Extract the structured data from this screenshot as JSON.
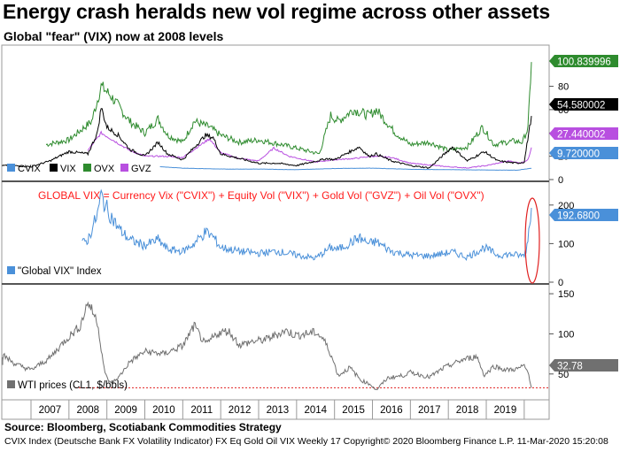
{
  "title": "Energy crash heralds new vol regime across other assets",
  "subtitle": "Global \"fear\" (VIX) now at 2008 levels",
  "source": "Source: Bloomberg, Scotiabank Commodities Strategy",
  "footer": "CVIX Index (Deutsche Bank FX Volatility Indicator) FX Eq Gold Oil VIX  Weekly 17 Copyright© 2020 Bloomberg Finance L.P. 11-Mar-2020 15:20:08",
  "chart_data": [
    {
      "type": "line",
      "panel": "top",
      "ylim": [
        0,
        110
      ],
      "yticks": [
        0,
        20,
        40,
        60,
        80
      ],
      "x_label_years": [
        "2007",
        "2008",
        "2009",
        "2010",
        "2011",
        "2012",
        "2013",
        "2014",
        "2015",
        "2016",
        "2017",
        "2018",
        "2019"
      ],
      "series": [
        {
          "name": "CVIX",
          "color": "#4a90d9",
          "last_value": "9.720000",
          "x": [
            2010.4,
            2011,
            2012,
            2013,
            2014,
            2015,
            2016,
            2017,
            2018,
            2019,
            2019.8,
            2020.19
          ],
          "y": [
            11,
            9.8,
            9,
            9,
            8.5,
            9.5,
            9.8,
            8.8,
            8.5,
            8.2,
            8.0,
            9.72
          ]
        },
        {
          "name": "VIX",
          "color": "#000000",
          "last_value": "54.580002",
          "x": [
            2006.0,
            2006.5,
            2007.0,
            2007.5,
            2008.0,
            2008.5,
            2008.75,
            2008.85,
            2009.0,
            2009.3,
            2009.6,
            2010.0,
            2010.35,
            2010.6,
            2011.0,
            2011.6,
            2011.8,
            2012.0,
            2012.5,
            2013.0,
            2013.5,
            2014.0,
            2014.8,
            2015.0,
            2015.65,
            2015.9,
            2016.1,
            2016.5,
            2017.0,
            2017.5,
            2018.1,
            2018.5,
            2018.95,
            2019.3,
            2019.8,
            2020.0,
            2020.19
          ],
          "y": [
            12,
            12,
            11,
            16,
            24,
            22,
            40,
            62,
            45,
            38,
            26,
            20,
            32,
            22,
            17,
            38,
            36,
            22,
            18,
            14,
            14,
            12,
            18,
            17,
            28,
            20,
            22,
            16,
            12,
            10,
            28,
            16,
            24,
            16,
            14,
            15,
            54.58
          ]
        },
        {
          "name": "OVX",
          "color": "#2e8b2e",
          "last_value": "100.839996",
          "x": [
            2007.4,
            2008.0,
            2008.6,
            2008.85,
            2009.1,
            2009.6,
            2010.0,
            2010.35,
            2010.6,
            2011.0,
            2011.3,
            2011.7,
            2012.0,
            2012.5,
            2013.0,
            2013.6,
            2014.0,
            2014.6,
            2014.9,
            2015.1,
            2015.5,
            2015.9,
            2016.1,
            2016.6,
            2017.0,
            2017.5,
            2018.0,
            2018.5,
            2018.9,
            2019.2,
            2019.7,
            2019.95,
            2020.1,
            2020.19
          ],
          "y": [
            30,
            34,
            50,
            80,
            72,
            50,
            40,
            52,
            38,
            32,
            50,
            45,
            38,
            32,
            34,
            30,
            27,
            22,
            55,
            50,
            60,
            55,
            60,
            40,
            30,
            32,
            25,
            28,
            45,
            30,
            33,
            32,
            44,
            100.84
          ]
        },
        {
          "name": "GVZ",
          "color": "#b84fe0",
          "last_value": "27.440002",
          "x": [
            2008.5,
            2008.85,
            2009.1,
            2009.6,
            2010.0,
            2010.5,
            2011.0,
            2011.7,
            2012.0,
            2012.5,
            2013.0,
            2013.4,
            2013.8,
            2014.5,
            2015.0,
            2015.5,
            2016.0,
            2016.5,
            2017.0,
            2018.0,
            2018.5,
            2019.0,
            2019.6,
            2019.9,
            2020.1,
            2020.19
          ],
          "y": [
            25,
            40,
            35,
            25,
            20,
            20,
            19,
            35,
            23,
            18,
            16,
            27,
            20,
            15,
            17,
            18,
            20,
            19,
            14,
            11,
            10,
            12,
            16,
            14,
            17,
            27.44
          ]
        }
      ]
    },
    {
      "type": "line",
      "panel": "middle",
      "annotation": "GLOBAL VIX = Currency Vix (\"CVIX\") + Equity Vol (\"VIX\") + Gold Vol (\"GVZ\") + Oil Vol (\"OVX\")",
      "ylim": [
        0,
        250
      ],
      "yticks": [
        0,
        100,
        200
      ],
      "series": [
        {
          "name": "\"Global VIX\" Index",
          "color": "#4a90d9",
          "last_value": "192.6800",
          "x": [
            2008.35,
            2008.5,
            2008.75,
            2008.85,
            2009.0,
            2009.3,
            2009.6,
            2010.0,
            2010.35,
            2010.6,
            2011.0,
            2011.3,
            2011.6,
            2011.8,
            2012.0,
            2012.5,
            2013.0,
            2013.5,
            2014.0,
            2014.5,
            2014.9,
            2015.1,
            2015.65,
            2015.9,
            2016.1,
            2016.5,
            2017.0,
            2017.5,
            2018.1,
            2018.5,
            2018.95,
            2019.3,
            2019.7,
            2019.95,
            2020.05,
            2020.19
          ],
          "y": [
            100,
            110,
            175,
            225,
            190,
            140,
            110,
            95,
            110,
            85,
            80,
            100,
            130,
            118,
            90,
            80,
            75,
            80,
            70,
            62,
            90,
            85,
            115,
            100,
            105,
            80,
            70,
            68,
            78,
            65,
            90,
            70,
            72,
            68,
            80,
            192.68
          ]
        }
      ]
    },
    {
      "type": "line",
      "panel": "bottom",
      "ylim": [
        20,
        160
      ],
      "yticks": [
        50,
        100,
        150
      ],
      "reference_line": 32.78,
      "series": [
        {
          "name": "WTI prices (CL1, $/bbls)",
          "color": "#707070",
          "last_value": "32.78",
          "x": [
            2006.0,
            2006.3,
            2006.6,
            2007.0,
            2007.5,
            2007.9,
            2008.3,
            2008.5,
            2008.75,
            2008.95,
            2009.1,
            2009.3,
            2009.6,
            2010.0,
            2010.5,
            2011.0,
            2011.3,
            2011.6,
            2011.9,
            2012.2,
            2012.5,
            2012.8,
            2013.2,
            2013.7,
            2014.0,
            2014.5,
            2014.7,
            2014.9,
            2015.1,
            2015.4,
            2015.7,
            2015.95,
            2016.1,
            2016.4,
            2016.8,
            2017.0,
            2017.5,
            2017.9,
            2018.4,
            2018.75,
            2018.95,
            2019.2,
            2019.5,
            2019.8,
            2020.0,
            2020.12,
            2020.19
          ],
          "y": [
            62,
            72,
            62,
            55,
            70,
            92,
            110,
            140,
            115,
            50,
            38,
            45,
            65,
            78,
            75,
            85,
            110,
            86,
            100,
            104,
            86,
            90,
            93,
            104,
            98,
            102,
            94,
            75,
            48,
            58,
            42,
            37,
            30,
            45,
            48,
            52,
            46,
            58,
            68,
            72,
            48,
            60,
            55,
            56,
            60,
            50,
            32.78
          ]
        }
      ]
    }
  ]
}
